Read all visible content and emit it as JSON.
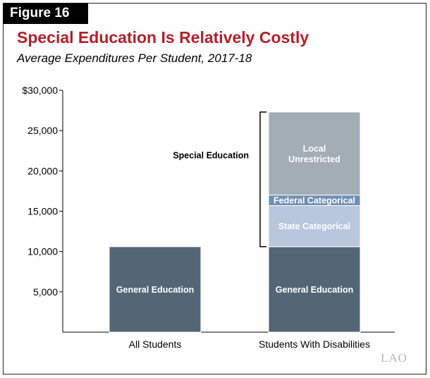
{
  "figure_label": "Figure 16",
  "logo_text": "LAO",
  "colors": {
    "title": "#b3202a",
    "general_education": "#536676",
    "state_categorical": "#b8c7dc",
    "federal_categorical": "#6f8fb4",
    "local_unrestricted": "#a3adb6"
  },
  "chart_data": {
    "type": "bar",
    "stacked": true,
    "title": "Special Education Is Relatively Costly",
    "subtitle": "Average Expenditures Per Student, 2017-18",
    "categories": [
      "All Students",
      "Students With Disabilities"
    ],
    "ylim": [
      0,
      30000
    ],
    "yticks": [
      5000,
      10000,
      15000,
      20000,
      25000,
      30000
    ],
    "ytick_labels": [
      "5,000",
      "10,000",
      "15,000",
      "20,000",
      "25,000",
      "$30,000"
    ],
    "series": [
      {
        "name": "General Education",
        "values": [
          10600,
          10600
        ],
        "labels": [
          "General Education",
          "General Education"
        ]
      },
      {
        "name": "State Categorical",
        "values": [
          0,
          5100
        ],
        "labels": [
          "",
          "State Categorical"
        ]
      },
      {
        "name": "Federal Categorical",
        "values": [
          0,
          1300
        ],
        "labels": [
          "",
          "Federal Categorical"
        ]
      },
      {
        "name": "Local Unrestricted",
        "values": [
          0,
          10300
        ],
        "labels": [
          "",
          "Local\nUnrestricted"
        ]
      }
    ],
    "annotation": {
      "text": "Special Education",
      "category_index": 1,
      "from": 10600,
      "to": 27300
    },
    "grid": false,
    "legend": "none"
  }
}
